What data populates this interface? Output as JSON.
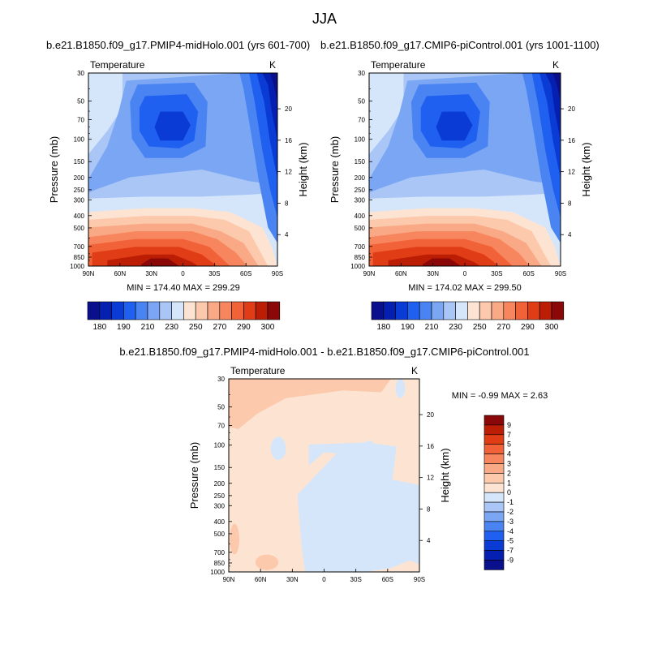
{
  "figure": {
    "title": "JJA"
  },
  "chart_data": [
    {
      "type": "heatmap",
      "panel_title": "b.e21.B1850.f09_g17.PMIP4-midHolo.001 (yrs 601-700)",
      "variable": "Temperature",
      "units": "K",
      "ylabel": "Pressure (mb)",
      "ylabel_right": "Height (km)",
      "x_ticks": [
        "90N",
        "60N",
        "30N",
        "0",
        "30S",
        "60S",
        "90S"
      ],
      "y_ticks": [
        30,
        50,
        70,
        100,
        150,
        200,
        250,
        300,
        400,
        500,
        700,
        850,
        1000
      ],
      "height_ticks": [
        4,
        8,
        12,
        16,
        20
      ],
      "ylim": [
        1000,
        30
      ],
      "y_scale": "log",
      "stats": "MIN = 174.40  MAX = 299.29",
      "min": 174.4,
      "max": 299.29,
      "colorbar_labels": [
        "180",
        "190",
        "210",
        "230",
        "250",
        "270",
        "290",
        "300"
      ]
    },
    {
      "type": "heatmap",
      "panel_title": "b.e21.B1850.f09_g17.CMIP6-piControl.001 (yrs 1001-1100)",
      "variable": "Temperature",
      "units": "K",
      "ylabel": "Pressure (mb)",
      "ylabel_right": "Height (km)",
      "x_ticks": [
        "90N",
        "60N",
        "30N",
        "0",
        "30S",
        "60S",
        "90S"
      ],
      "y_ticks": [
        30,
        50,
        70,
        100,
        150,
        200,
        250,
        300,
        400,
        500,
        700,
        850,
        1000
      ],
      "height_ticks": [
        4,
        8,
        12,
        16,
        20
      ],
      "ylim": [
        1000,
        30
      ],
      "y_scale": "log",
      "stats": "MIN = 174.02  MAX = 299.50",
      "min": 174.02,
      "max": 299.5,
      "colorbar_labels": [
        "180",
        "190",
        "210",
        "230",
        "250",
        "270",
        "290",
        "300"
      ]
    },
    {
      "type": "heatmap",
      "panel_title": "b.e21.B1850.f09_g17.PMIP4-midHolo.001 - b.e21.B1850.f09_g17.CMIP6-piControl.001",
      "variable": "Temperature",
      "units": "K",
      "ylabel": "Pressure (mb)",
      "ylabel_right": "Height (km)",
      "x_ticks": [
        "90N",
        "60N",
        "30N",
        "0",
        "30S",
        "60S",
        "90S"
      ],
      "y_ticks": [
        30,
        50,
        70,
        100,
        150,
        200,
        250,
        300,
        400,
        500,
        700,
        850,
        1000
      ],
      "height_ticks": [
        4,
        8,
        12,
        16,
        20
      ],
      "ylim": [
        1000,
        30
      ],
      "y_scale": "log",
      "stats": "MIN =  -0.99  MAX =   2.63",
      "min": -0.99,
      "max": 2.63,
      "colorbar_labels": [
        "9",
        "7",
        "5",
        "4",
        "3",
        "2",
        "1",
        "0",
        "-1",
        "-2",
        "-3",
        "-4",
        "-5",
        "-7",
        "-9"
      ]
    }
  ],
  "colors": {
    "abs_palette": [
      "#0a0f8c",
      "#0520b0",
      "#0a3bd4",
      "#2060f0",
      "#4a84f2",
      "#7aa6f4",
      "#a9c6f7",
      "#d6e6fa",
      "#fde4d2",
      "#fcc9ac",
      "#f9a986",
      "#f7865e",
      "#f26238",
      "#e03c15",
      "#bb1e05",
      "#8a0808"
    ],
    "diff_palette": [
      "#8a0808",
      "#bb1e05",
      "#e03c15",
      "#f26238",
      "#f7865e",
      "#f9a986",
      "#fcc9ac",
      "#fde4d2",
      "#d6e6fa",
      "#a9c6f7",
      "#7aa6f4",
      "#4a84f2",
      "#2060f0",
      "#0a3bd4",
      "#0520b0",
      "#0a0f8c"
    ]
  }
}
